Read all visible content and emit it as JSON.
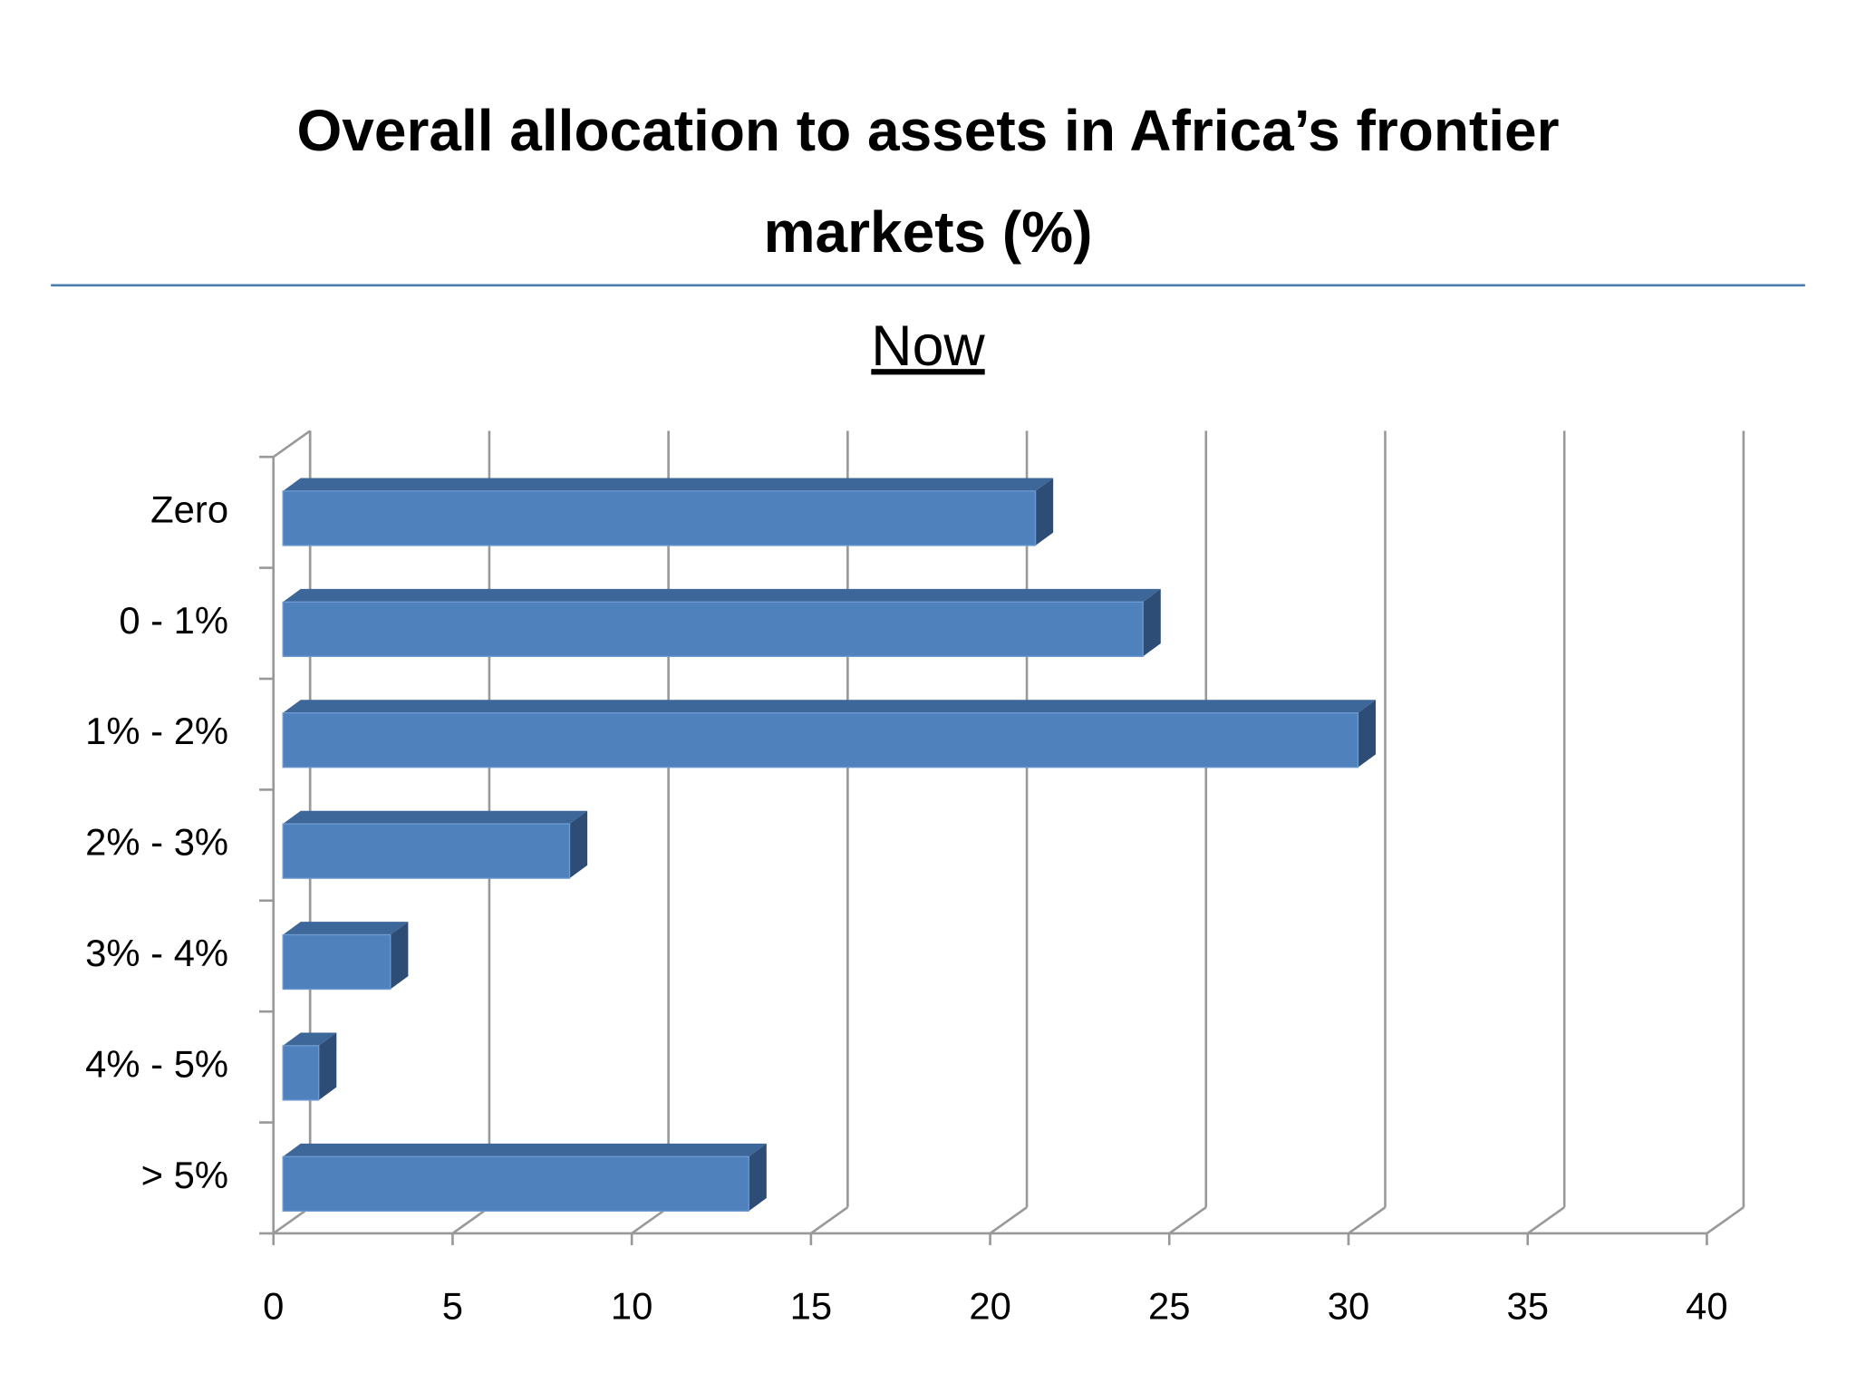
{
  "chart_data": {
    "type": "bar3d_horizontal",
    "title": "Overall allocation to assets in Africa’s frontier markets (%)",
    "subtitle": "Now",
    "categories": [
      "Zero",
      "0 - 1%",
      "1% - 2%",
      "2% - 3%",
      "3% - 4%",
      "4% - 5%",
      "> 5%"
    ],
    "values": [
      21,
      24,
      30,
      8,
      3,
      1,
      13
    ],
    "color": "#4f81bd",
    "xlim": [
      0,
      40
    ],
    "xticks": [
      0,
      5,
      10,
      15,
      20,
      25,
      30,
      35,
      40
    ],
    "grid": true
  }
}
